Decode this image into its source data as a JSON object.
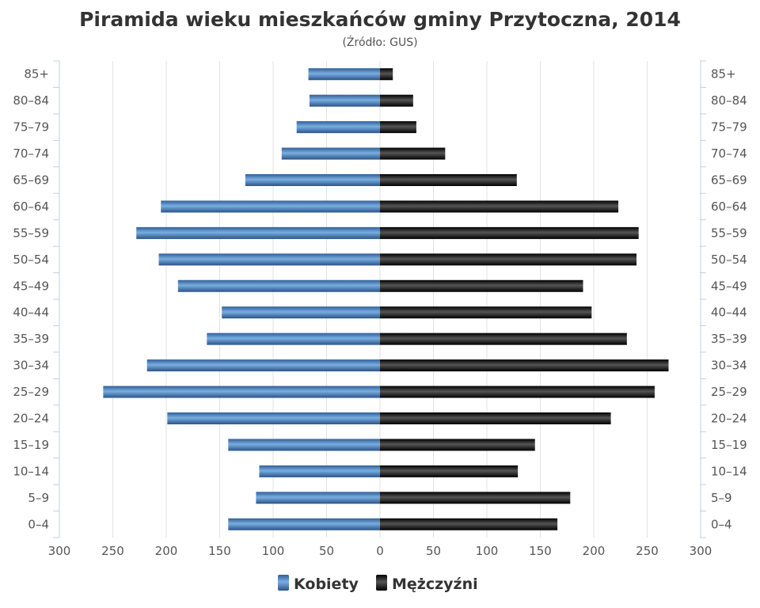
{
  "chart_data": {
    "type": "bar",
    "orientation": "horizontal-pyramid",
    "title": "Piramida wieku mieszkańców gminy Przytoczna, 2014",
    "subtitle": "(Źródło: GUS)",
    "categories": [
      "0-4",
      "5-9",
      "10-14",
      "15-19",
      "20-24",
      "25-29",
      "30-34",
      "35-39",
      "40-44",
      "45-49",
      "50-54",
      "55-59",
      "60-64",
      "65-69",
      "70-74",
      "75-79",
      "80-84",
      "85+"
    ],
    "category_labels": [
      "0–4",
      "5–9",
      "10–14",
      "15–19",
      "20–24",
      "25–29",
      "30–34",
      "35–39",
      "40–44",
      "45–49",
      "50–54",
      "55–59",
      "60–64",
      "65–69",
      "70–74",
      "75–79",
      "80–84",
      "85+"
    ],
    "series": [
      {
        "name": "Kobiety",
        "side": "left",
        "color": "#4a7fba",
        "values": [
          142,
          116,
          113,
          142,
          199,
          259,
          218,
          162,
          148,
          189,
          207,
          228,
          205,
          126,
          92,
          78,
          66,
          67
        ]
      },
      {
        "name": "Mężczyźni",
        "side": "right",
        "color": "#1a1a1a",
        "values": [
          166,
          178,
          129,
          145,
          216,
          257,
          270,
          231,
          198,
          190,
          240,
          242,
          223,
          128,
          61,
          34,
          31,
          12
        ]
      }
    ],
    "x_ticks": [
      "300",
      "250",
      "200",
      "150",
      "100",
      "50",
      "0",
      "50",
      "100",
      "150",
      "200",
      "250",
      "300"
    ],
    "xlim": [
      -300,
      300
    ],
    "grid": true,
    "legend_position": "bottom-center"
  }
}
